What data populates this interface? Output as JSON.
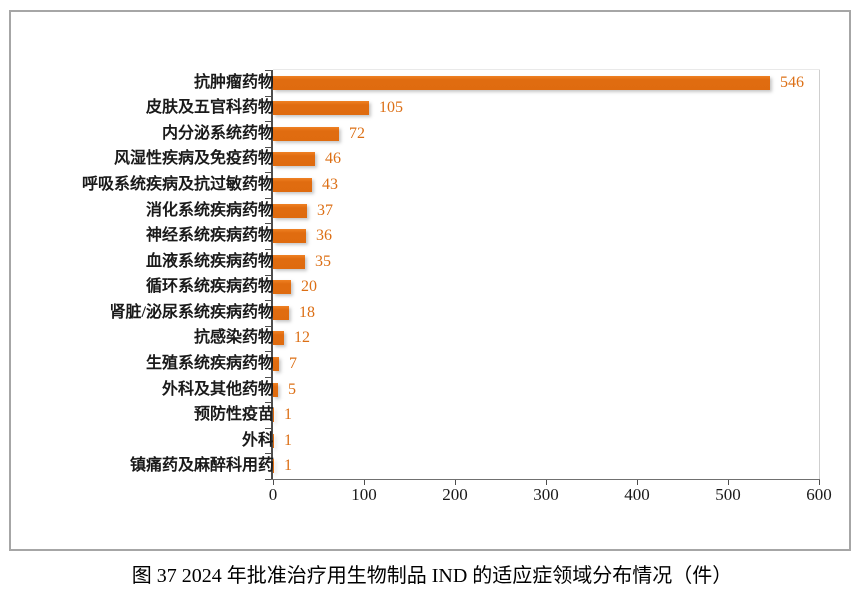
{
  "figure": {
    "caption": "图 37  2024 年批准治疗用生物制品 IND 的适应症领域分布情况（件）"
  },
  "chart_data": {
    "type": "bar",
    "orientation": "horizontal",
    "title": "",
    "xlabel": "",
    "ylabel": "",
    "xlim": [
      0,
      600
    ],
    "x_ticks": [
      0,
      100,
      200,
      300,
      400,
      500,
      600
    ],
    "grid": false,
    "legend": false,
    "bar_color": "#e06c10",
    "value_label_color": "#dc6f15",
    "categories": [
      "抗肿瘤药物",
      "皮肤及五官科药物",
      "内分泌系统药物",
      "风湿性疾病及免疫药物",
      "呼吸系统疾病及抗过敏药物",
      "消化系统疾病药物",
      "神经系统疾病药物",
      "血液系统疾病药物",
      "循环系统疾病药物",
      "肾脏/泌尿系统疾病药物",
      "抗感染药物",
      "生殖系统疾病药物",
      "外科及其他药物",
      "预防性疫苗",
      "外科",
      "镇痛药及麻醉科用药"
    ],
    "values": [
      546,
      105,
      72,
      46,
      43,
      37,
      36,
      35,
      20,
      18,
      12,
      7,
      5,
      1,
      1,
      1
    ]
  }
}
